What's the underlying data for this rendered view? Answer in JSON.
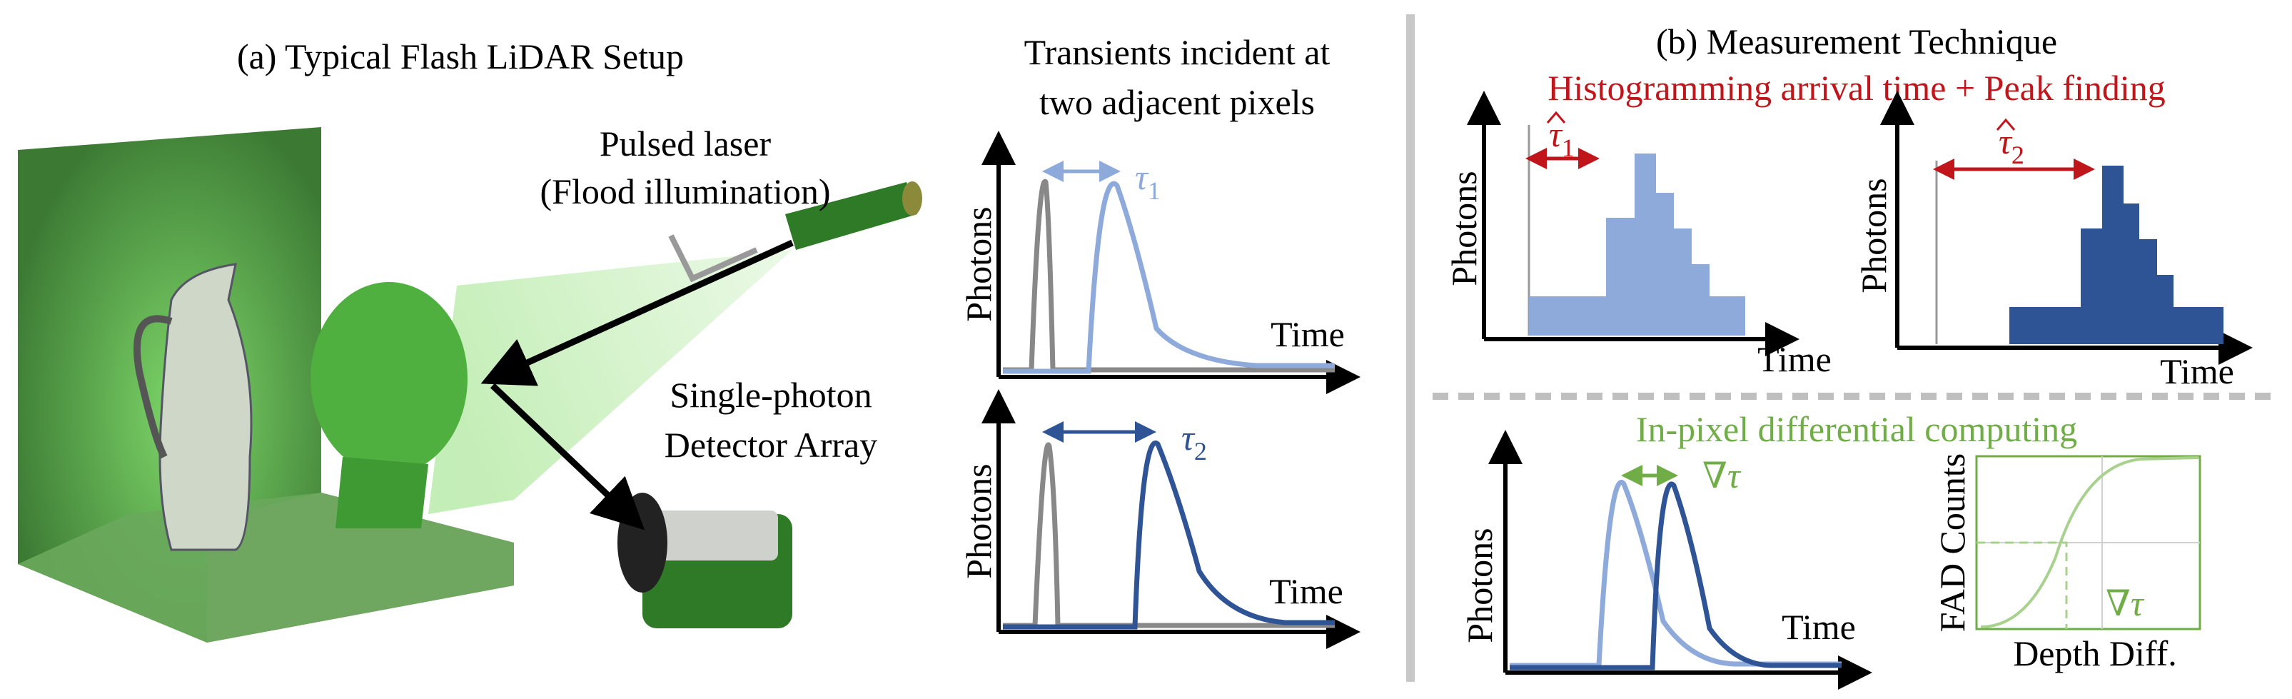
{
  "panel_a": {
    "title": "(a) Typical Flash LiDAR Setup",
    "laser_label": [
      "Pulsed laser",
      "(Flood illumination)"
    ],
    "detector_label": [
      "Single-photon",
      "Detector Array"
    ]
  },
  "transients": {
    "title": [
      "Transients incident at",
      "two adjacent pixels"
    ],
    "plots": [
      {
        "y_label": "Photons",
        "x_label": "Time",
        "delay": {
          "symbol": "τ",
          "subscript": "1"
        }
      },
      {
        "y_label": "Photons",
        "x_label": "Time",
        "delay": {
          "symbol": "τ",
          "subscript": "2"
        }
      }
    ]
  },
  "panel_b": {
    "title": "(b) Measurement Technique",
    "subtitle": "Histogramming arrival time  + Peak finding",
    "histograms": [
      {
        "y_label": "Photons",
        "x_label": "Time",
        "estimate": {
          "symbol": "τ",
          "subscript": "1"
        }
      },
      {
        "y_label": "Photons",
        "x_label": "Time",
        "estimate": {
          "symbol": "τ",
          "subscript": "2"
        }
      }
    ],
    "differential": {
      "title": "In-pixel differential computing",
      "y_label": "Photons",
      "x_label": "Time",
      "delta": "∇τ"
    },
    "fad": {
      "y_label": "FAD Counts",
      "x_label": "Depth Diff.",
      "delta": "∇τ"
    }
  }
}
